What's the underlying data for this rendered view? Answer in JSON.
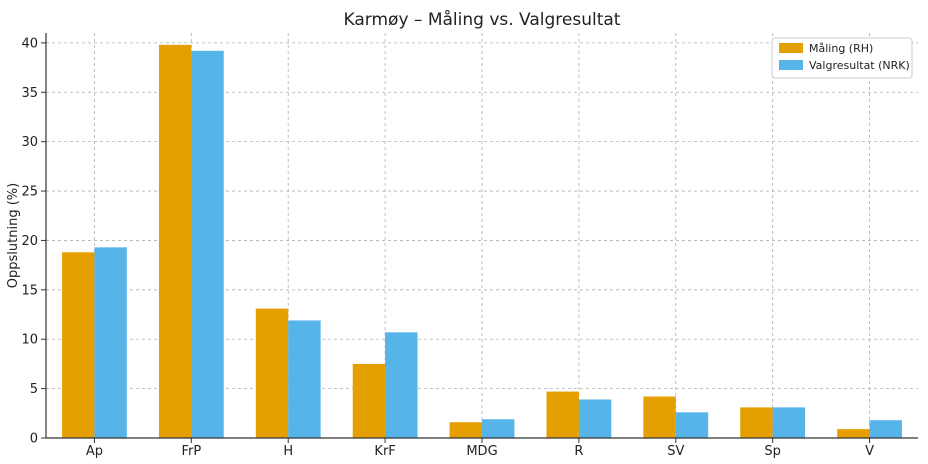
{
  "chart_data": {
    "type": "bar",
    "title": "Karmøy – Måling vs. Valgresultat",
    "xlabel": "",
    "ylabel": "Oppslutning (%)",
    "ylim": [
      0,
      41
    ],
    "yticks": [
      0,
      5,
      10,
      15,
      20,
      25,
      30,
      35,
      40
    ],
    "grid": true,
    "legend_position": "top-right",
    "categories": [
      "Ap",
      "FrP",
      "H",
      "KrF",
      "MDG",
      "R",
      "SV",
      "Sp",
      "V"
    ],
    "series": [
      {
        "name": "Måling (RH)",
        "color": "#E69F00",
        "values": [
          18.8,
          39.8,
          13.1,
          7.5,
          1.6,
          4.7,
          4.2,
          3.1,
          0.9
        ]
      },
      {
        "name": "Valgresultat (NRK)",
        "color": "#56B4E9",
        "values": [
          19.3,
          39.2,
          11.9,
          10.7,
          1.9,
          3.9,
          2.6,
          3.1,
          1.8
        ]
      }
    ]
  }
}
